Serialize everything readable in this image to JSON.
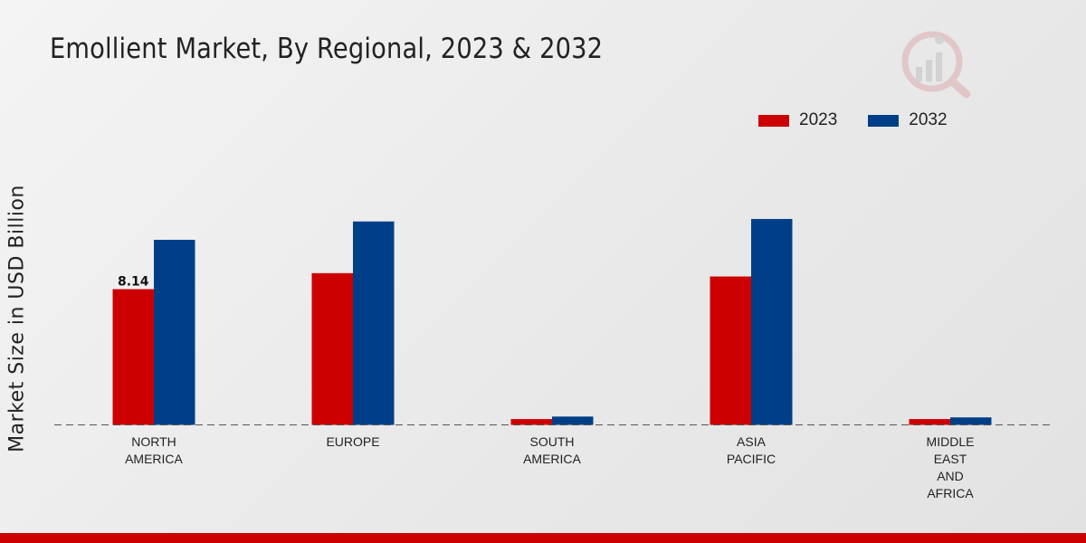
{
  "chart_data": {
    "type": "bar",
    "title": "Emollient Market, By Regional, 2023 & 2032",
    "ylabel": "Market Size in USD Billion",
    "xlabel": "",
    "categories": [
      "NORTH\nAMERICA",
      "EUROPE",
      "SOUTH\nAMERICA",
      "ASIA\nPACIFIC",
      "MIDDLE\nEAST\nAND\nAFRICA"
    ],
    "series": [
      {
        "name": "2023",
        "color": "#cc0000",
        "values": [
          8.14,
          9.1,
          0.35,
          8.9,
          0.35
        ]
      },
      {
        "name": "2032",
        "color": "#003f87",
        "values": [
          11.1,
          12.2,
          0.5,
          12.35,
          0.45
        ]
      }
    ],
    "data_labels": [
      {
        "series": 0,
        "index": 0,
        "text": "8.14"
      }
    ],
    "ylim": [
      0,
      20
    ],
    "grid": false,
    "legend_position": "top-right"
  }
}
